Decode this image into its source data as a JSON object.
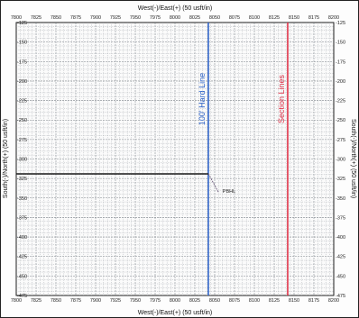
{
  "chart_data": {
    "type": "line",
    "title": "",
    "xlabel": "West(-)/East(+) (50 usft/in)",
    "ylabel_left": "South(-)/North(+) (50 usft/in)",
    "ylabel_right": "South(-)/North(+) (50 usft/in)",
    "xlim": [
      7800,
      8200
    ],
    "ylim": [
      -475,
      -125
    ],
    "x_ticks": [
      7800,
      7825,
      7850,
      7875,
      7900,
      7925,
      7950,
      7975,
      8000,
      8025,
      8050,
      8075,
      8100,
      8125,
      8150,
      8175,
      8200
    ],
    "y_ticks": [
      -125,
      -150,
      -175,
      -200,
      -225,
      -250,
      -275,
      -300,
      -325,
      -350,
      -375,
      -400,
      -425,
      -450,
      -475
    ],
    "grid": true,
    "series": [
      {
        "name": "",
        "color": "#1a1a1a",
        "x": [
          7800,
          8042
        ],
        "y": [
          -319,
          -319
        ]
      },
      {
        "name": "",
        "color": "#6b5a7a",
        "x": [
          8042,
          8055
        ],
        "y": [
          -319,
          -343
        ],
        "style": "dashed"
      }
    ],
    "vertical_lines": [
      {
        "label": "100' Hard Line",
        "x": 8042,
        "color": "#2f64c9"
      },
      {
        "label": "Section Lines",
        "x": 8142,
        "color": "#e0344a"
      }
    ],
    "annotations": [
      {
        "text": "PBHL",
        "x": 8060,
        "y": -340
      }
    ]
  }
}
